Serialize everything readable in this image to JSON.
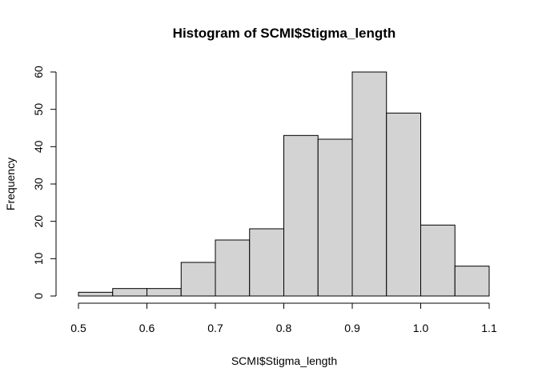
{
  "chart_data": {
    "type": "bar",
    "title": "Histogram of SCMI$Stigma_length",
    "xlabel": "SCMI$Stigma_length",
    "ylabel": "Frequency",
    "bins": [
      {
        "x0": 0.5,
        "x1": 0.55,
        "count": 1
      },
      {
        "x0": 0.55,
        "x1": 0.6,
        "count": 2
      },
      {
        "x0": 0.6,
        "x1": 0.65,
        "count": 2
      },
      {
        "x0": 0.65,
        "x1": 0.7,
        "count": 9
      },
      {
        "x0": 0.7,
        "x1": 0.75,
        "count": 15
      },
      {
        "x0": 0.75,
        "x1": 0.8,
        "count": 18
      },
      {
        "x0": 0.8,
        "x1": 0.85,
        "count": 43
      },
      {
        "x0": 0.85,
        "x1": 0.9,
        "count": 42
      },
      {
        "x0": 0.9,
        "x1": 0.95,
        "count": 60
      },
      {
        "x0": 0.95,
        "x1": 1.0,
        "count": 49
      },
      {
        "x0": 1.0,
        "x1": 1.05,
        "count": 19
      },
      {
        "x0": 1.05,
        "x1": 1.1,
        "count": 8
      }
    ],
    "xlim": [
      0.5,
      1.1
    ],
    "ylim": [
      0,
      60
    ],
    "x_ticks": [
      "0.5",
      "0.6",
      "0.7",
      "0.8",
      "0.9",
      "1.0",
      "1.1"
    ],
    "y_ticks": [
      "0",
      "10",
      "20",
      "30",
      "40",
      "50",
      "60"
    ],
    "bar_fill": "#d3d3d3",
    "bar_stroke": "#000000",
    "grid": false
  }
}
